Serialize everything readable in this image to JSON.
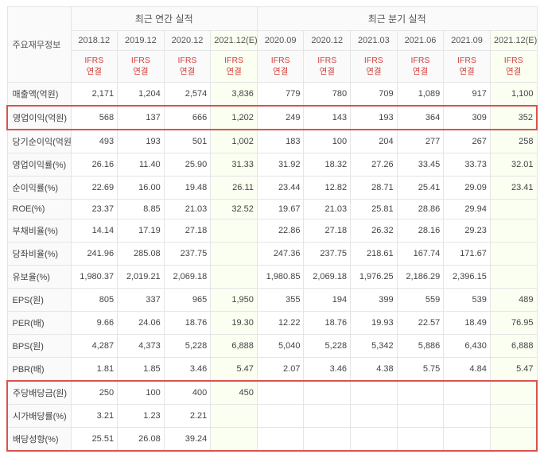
{
  "colors": {
    "accent_red": "#d43f3a",
    "highlight_border": "#d9534f",
    "estimate_bg": "#fbfff1",
    "header_bg": "#fafafa",
    "grid": "#e5e5e5",
    "text": "#444444"
  },
  "header": {
    "corner": "주요재무정보",
    "group_annual": "최근 연간 실적",
    "group_quarter": "최근 분기 실적",
    "annual_periods": [
      "2018.12",
      "2019.12",
      "2020.12",
      "2021.12(E)"
    ],
    "quarter_periods": [
      "2020.09",
      "2020.12",
      "2021.03",
      "2021.06",
      "2021.09",
      "2021.12(E)"
    ],
    "ifrs_line1": "IFRS",
    "ifrs_line2": "연결",
    "estimate_cols": [
      4,
      10
    ]
  },
  "rows": [
    {
      "label": "매출액(억원)",
      "vals": [
        "2,171",
        "1,204",
        "2,574",
        "3,836",
        "779",
        "780",
        "709",
        "1,089",
        "917",
        "1,100"
      ],
      "hl": ""
    },
    {
      "label": "영업이익(억원)",
      "vals": [
        "568",
        "137",
        "666",
        "1,202",
        "249",
        "143",
        "193",
        "364",
        "309",
        "352"
      ],
      "hl": "single"
    },
    {
      "label": "당기순이익(억원)",
      "vals": [
        "493",
        "193",
        "501",
        "1,002",
        "183",
        "100",
        "204",
        "277",
        "267",
        "258"
      ],
      "hl": ""
    },
    {
      "label": "영업이익률(%)",
      "vals": [
        "26.16",
        "11.40",
        "25.90",
        "31.33",
        "31.92",
        "18.32",
        "27.26",
        "33.45",
        "33.73",
        "32.01"
      ],
      "hl": ""
    },
    {
      "label": "순이익률(%)",
      "vals": [
        "22.69",
        "16.00",
        "19.48",
        "26.11",
        "23.44",
        "12.82",
        "28.71",
        "25.41",
        "29.09",
        "23.41"
      ],
      "hl": ""
    },
    {
      "label": "ROE(%)",
      "vals": [
        "23.37",
        "8.85",
        "21.03",
        "32.52",
        "19.67",
        "21.03",
        "25.81",
        "28.86",
        "29.94",
        ""
      ],
      "hl": ""
    },
    {
      "label": "부채비율(%)",
      "vals": [
        "14.14",
        "17.19",
        "27.18",
        "",
        "22.86",
        "27.18",
        "26.32",
        "28.16",
        "29.23",
        ""
      ],
      "hl": ""
    },
    {
      "label": "당좌비율(%)",
      "vals": [
        "241.96",
        "285.08",
        "237.75",
        "",
        "247.36",
        "237.75",
        "218.61",
        "167.74",
        "171.67",
        ""
      ],
      "hl": ""
    },
    {
      "label": "유보율(%)",
      "vals": [
        "1,980.37",
        "2,019.21",
        "2,069.18",
        "",
        "1,980.85",
        "2,069.18",
        "1,976.25",
        "2,186.29",
        "2,396.15",
        ""
      ],
      "hl": ""
    },
    {
      "label": "EPS(원)",
      "vals": [
        "805",
        "337",
        "965",
        "1,950",
        "355",
        "194",
        "399",
        "559",
        "539",
        "489"
      ],
      "hl": ""
    },
    {
      "label": "PER(배)",
      "vals": [
        "9.66",
        "24.06",
        "18.76",
        "19.30",
        "12.22",
        "18.76",
        "19.93",
        "22.57",
        "18.49",
        "76.95"
      ],
      "hl": ""
    },
    {
      "label": "BPS(원)",
      "vals": [
        "4,287",
        "4,373",
        "5,228",
        "6,888",
        "5,040",
        "5,228",
        "5,342",
        "5,886",
        "6,430",
        "6,888"
      ],
      "hl": ""
    },
    {
      "label": "PBR(배)",
      "vals": [
        "1.81",
        "1.85",
        "3.46",
        "5.47",
        "2.07",
        "3.46",
        "4.38",
        "5.75",
        "4.84",
        "5.47"
      ],
      "hl": ""
    },
    {
      "label": "주당배당금(원)",
      "vals": [
        "250",
        "100",
        "400",
        "450",
        "",
        "",
        "",
        "",
        "",
        ""
      ],
      "hl": "top"
    },
    {
      "label": "시가배당률(%)",
      "vals": [
        "3.21",
        "1.23",
        "2.21",
        "",
        "",
        "",
        "",
        "",
        "",
        ""
      ],
      "hl": "mid"
    },
    {
      "label": "배당성향(%)",
      "vals": [
        "25.51",
        "26.08",
        "39.24",
        "",
        "",
        "",
        "",
        "",
        "",
        ""
      ],
      "hl": "bot"
    }
  ]
}
